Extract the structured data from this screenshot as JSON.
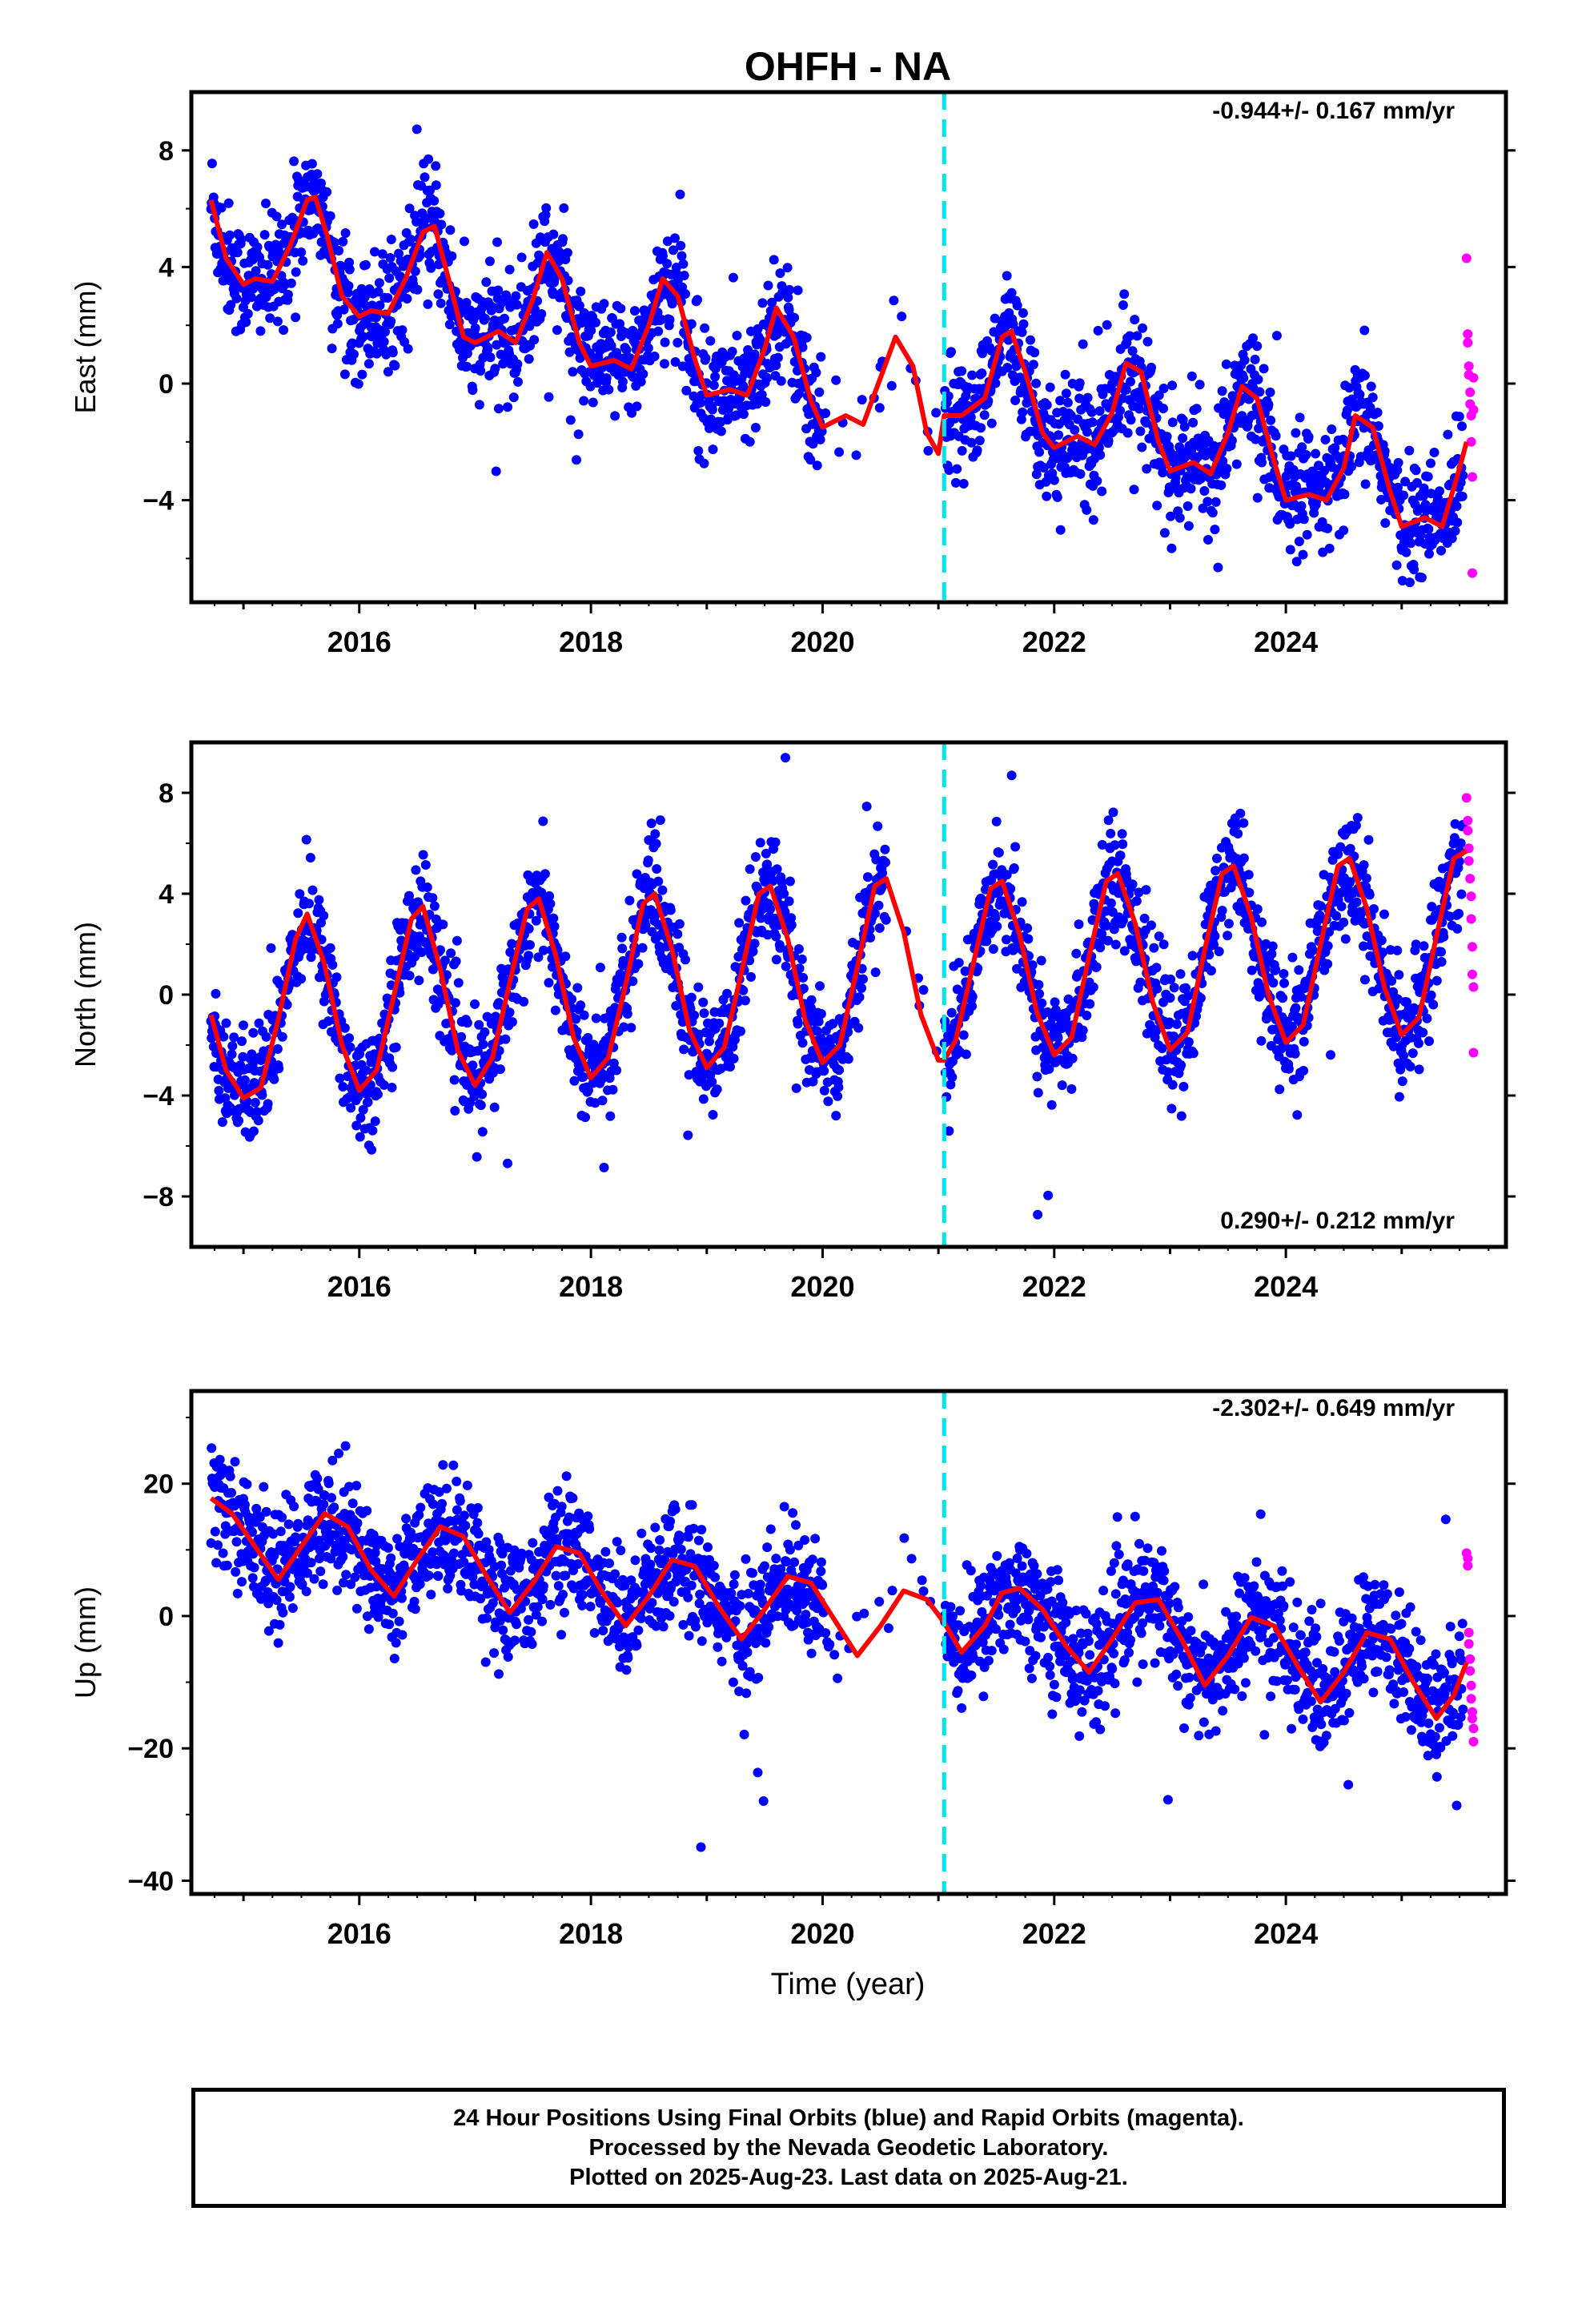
{
  "title": "OHFH - NA",
  "xlabel": "Time (year)",
  "footer": {
    "line1": "24 Hour Positions Using Final Orbits (blue) and Rapid Orbits (magenta).",
    "line2": "Processed by the Nevada Geodetic Laboratory.",
    "line3": "Plotted on 2025-Aug-23. Last data on 2025-Aug-21."
  },
  "colors": {
    "final": "#0000ff",
    "rapid": "#ff00ff",
    "model": "#ff0000",
    "event_line": "#00e5ee"
  },
  "chart_data": [
    {
      "type": "scatter",
      "component": "east",
      "ylabel": "East (mm)",
      "rate_text": "-0.944+/- 0.167 mm/yr",
      "xlim": [
        2014.55,
        2025.9
      ],
      "ylim": [
        -7.5,
        10
      ],
      "yticks": [
        -4,
        0,
        4,
        8
      ],
      "xticks": [
        2016,
        2018,
        2020,
        2022,
        2024
      ],
      "event_line_x": 2021.05,
      "gap": [
        2020.0,
        2021.05
      ],
      "series": [
        {
          "name": "Final Orbits (blue)",
          "kind": "points",
          "x_range": [
            2014.72,
            2025.53
          ],
          "trend_mm_per_yr": -0.944,
          "offset_2014_7": 4.3,
          "annual_amp": 2.2,
          "semiannual_amp": 0.9,
          "scatter": 1.0
        },
        {
          "name": "Rapid Orbits (magenta)",
          "kind": "points",
          "x": [
            2025.56,
            2025.57,
            2025.57,
            2025.58,
            2025.58,
            2025.59,
            2025.59,
            2025.6,
            2025.6,
            2025.61,
            2025.61,
            2025.62,
            2025.62
          ],
          "y": [
            4.3,
            1.7,
            1.4,
            0.6,
            0.3,
            -0.3,
            -0.7,
            -1.1,
            -2.0,
            -3.2,
            -6.5,
            -0.9,
            0.2
          ]
        },
        {
          "name": "model",
          "kind": "curve",
          "x": [
            2014.72,
            2014.85,
            2015.0,
            2015.1,
            2015.25,
            2015.4,
            2015.55,
            2015.62,
            2015.72,
            2015.85,
            2016.0,
            2016.1,
            2016.25,
            2016.4,
            2016.55,
            2016.65,
            2016.75,
            2016.9,
            2017.0,
            2017.2,
            2017.35,
            2017.5,
            2017.62,
            2017.75,
            2017.9,
            2018.0,
            2018.2,
            2018.35,
            2018.5,
            2018.62,
            2018.75,
            2018.9,
            2019.0,
            2019.2,
            2019.35,
            2019.5,
            2019.6,
            2019.75,
            2019.9,
            2020.0,
            2020.2,
            2020.35,
            2020.5,
            2020.63,
            2020.78,
            2020.9,
            2021.0,
            2021.05,
            2021.2,
            2021.4,
            2021.55,
            2021.63,
            2021.75,
            2021.9,
            2022.0,
            2022.2,
            2022.35,
            2022.5,
            2022.62,
            2022.75,
            2022.9,
            2023.0,
            2023.2,
            2023.35,
            2023.5,
            2023.62,
            2023.75,
            2023.9,
            2024.0,
            2024.2,
            2024.35,
            2024.5,
            2024.6,
            2024.75,
            2024.9,
            2025.0,
            2025.2,
            2025.35,
            2025.5,
            2025.56
          ],
          "y": [
            6.3,
            4.3,
            3.4,
            3.6,
            3.5,
            4.7,
            6.3,
            6.4,
            5.1,
            3.0,
            2.3,
            2.5,
            2.4,
            3.6,
            5.2,
            5.4,
            3.9,
            1.6,
            1.4,
            1.8,
            1.4,
            2.9,
            4.5,
            3.6,
            1.4,
            0.6,
            0.8,
            0.5,
            2.0,
            3.6,
            3.0,
            0.8,
            -0.4,
            -0.2,
            -0.4,
            1.2,
            2.6,
            1.6,
            -0.6,
            -1.5,
            -1.1,
            -1.4,
            0.2,
            1.6,
            0.6,
            -1.7,
            -2.4,
            -1.1,
            -1.1,
            -0.5,
            1.6,
            1.8,
            0.4,
            -1.7,
            -2.2,
            -1.8,
            -2.1,
            -1.0,
            0.7,
            0.4,
            -2.0,
            -3.0,
            -2.7,
            -3.1,
            -1.7,
            -0.1,
            -0.5,
            -2.7,
            -4.0,
            -3.8,
            -4.0,
            -2.9,
            -1.1,
            -1.5,
            -3.7,
            -4.9,
            -4.6,
            -4.9,
            -2.9,
            -2.0
          ]
        }
      ]
    },
    {
      "type": "scatter",
      "component": "north",
      "ylabel": "North (mm)",
      "rate_text": "0.290+/- 0.212 mm/yr",
      "xlim": [
        2014.55,
        2025.9
      ],
      "ylim": [
        -10,
        10
      ],
      "yticks": [
        -8,
        -4,
        0,
        4,
        8
      ],
      "xticks": [
        2016,
        2018,
        2020,
        2022,
        2024
      ],
      "event_line_x": 2021.05,
      "gap": [
        2020.55,
        2021.05
      ],
      "series": [
        {
          "name": "Final Orbits (blue)",
          "kind": "points",
          "x_range": [
            2014.72,
            2025.53
          ],
          "trend_mm_per_yr": 0.29,
          "offset_2014_7": 0.0,
          "annual_amp": 3.7,
          "semiannual_amp": 0.0,
          "scatter": 1.1
        },
        {
          "name": "Rapid Orbits (magenta)",
          "kind": "points",
          "x": [
            2025.56,
            2025.57,
            2025.57,
            2025.58,
            2025.58,
            2025.59,
            2025.6,
            2025.6,
            2025.61,
            2025.61,
            2025.62,
            2025.62
          ],
          "y": [
            7.8,
            6.9,
            6.5,
            5.8,
            5.3,
            4.6,
            3.9,
            3.0,
            1.9,
            0.8,
            0.3,
            -2.3
          ]
        },
        {
          "name": "model",
          "kind": "curve",
          "x": [
            2014.72,
            2014.85,
            2015.0,
            2015.15,
            2015.3,
            2015.45,
            2015.55,
            2015.7,
            2015.85,
            2016.0,
            2016.15,
            2016.3,
            2016.45,
            2016.55,
            2016.7,
            2016.85,
            2017.0,
            2017.15,
            2017.3,
            2017.45,
            2017.55,
            2017.7,
            2017.85,
            2018.0,
            2018.15,
            2018.3,
            2018.45,
            2018.55,
            2018.7,
            2018.85,
            2019.0,
            2019.15,
            2019.3,
            2019.45,
            2019.55,
            2019.7,
            2019.85,
            2020.0,
            2020.15,
            2020.3,
            2020.45,
            2020.55,
            2020.7,
            2020.85,
            2021.0,
            2021.05,
            2021.15,
            2021.3,
            2021.45,
            2021.55,
            2021.7,
            2021.85,
            2022.0,
            2022.15,
            2022.3,
            2022.45,
            2022.55,
            2022.7,
            2022.85,
            2023.0,
            2023.15,
            2023.3,
            2023.45,
            2023.55,
            2023.7,
            2023.85,
            2024.0,
            2024.15,
            2024.3,
            2024.45,
            2024.55,
            2024.7,
            2024.85,
            2025.0,
            2025.15,
            2025.3,
            2025.45,
            2025.56
          ],
          "y": [
            -0.8,
            -3.0,
            -4.1,
            -3.7,
            -1.0,
            2.2,
            3.2,
            1.2,
            -2.0,
            -3.8,
            -3.0,
            0.0,
            3.0,
            3.5,
            1.0,
            -2.2,
            -3.6,
            -2.5,
            0.5,
            3.4,
            3.8,
            1.5,
            -1.7,
            -3.3,
            -2.5,
            0.4,
            3.6,
            4.0,
            1.8,
            -1.4,
            -2.9,
            -2.1,
            0.9,
            4.0,
            4.3,
            2.2,
            -1.0,
            -2.7,
            -2.0,
            1.1,
            4.3,
            4.6,
            2.5,
            -0.8,
            -2.6,
            -2.6,
            -1.8,
            1.2,
            4.2,
            4.5,
            2.4,
            -0.7,
            -2.4,
            -1.7,
            1.5,
            4.5,
            4.8,
            2.8,
            -0.3,
            -2.2,
            -1.5,
            1.8,
            4.8,
            5.1,
            3.1,
            0.0,
            -1.9,
            -1.2,
            2.0,
            5.1,
            5.4,
            3.4,
            0.3,
            -1.6,
            -0.9,
            2.3,
            5.4,
            5.7
          ]
        }
      ]
    },
    {
      "type": "scatter",
      "component": "up",
      "ylabel": "Up (mm)",
      "rate_text": "-2.302+/- 0.649 mm/yr",
      "xlim": [
        2014.55,
        2025.9
      ],
      "ylim": [
        -42,
        34
      ],
      "yticks": [
        -40,
        -20,
        0,
        20
      ],
      "xticks": [
        2016,
        2018,
        2020,
        2022,
        2024
      ],
      "event_line_x": 2021.05,
      "gap": [
        2020.0,
        2021.05
      ],
      "series": [
        {
          "name": "Final Orbits (blue)",
          "kind": "points",
          "x_range": [
            2014.72,
            2025.53
          ],
          "trend_mm_per_yr": -2.302,
          "offset_2014_7": 12.5,
          "annual_amp": 6.0,
          "semiannual_amp": 0.0,
          "scatter": 4.5
        },
        {
          "name": "Rapid Orbits (magenta)",
          "kind": "points",
          "x": [
            2025.56,
            2025.57,
            2025.57,
            2025.58,
            2025.58,
            2025.59,
            2025.59,
            2025.6,
            2025.6,
            2025.61,
            2025.61,
            2025.62,
            2025.62
          ],
          "y": [
            9.5,
            8.7,
            7.6,
            -2.5,
            -4.2,
            -6.5,
            -8.3,
            -10.5,
            -12.5,
            -14.5,
            -15.5,
            -17.0,
            -19.0
          ]
        },
        {
          "name": "model",
          "kind": "curve",
          "x": [
            2014.72,
            2014.9,
            2015.1,
            2015.3,
            2015.5,
            2015.7,
            2015.9,
            2016.1,
            2016.3,
            2016.5,
            2016.7,
            2016.9,
            2017.1,
            2017.3,
            2017.5,
            2017.7,
            2017.9,
            2018.1,
            2018.3,
            2018.5,
            2018.7,
            2018.9,
            2019.1,
            2019.3,
            2019.5,
            2019.7,
            2019.9,
            2020.1,
            2020.3,
            2020.5,
            2020.7,
            2020.9,
            2021.05,
            2021.2,
            2021.4,
            2021.55,
            2021.7,
            2021.9,
            2022.1,
            2022.3,
            2022.5,
            2022.7,
            2022.9,
            2023.1,
            2023.3,
            2023.5,
            2023.7,
            2023.9,
            2024.1,
            2024.3,
            2024.5,
            2024.7,
            2024.9,
            2025.1,
            2025.3,
            2025.45,
            2025.56
          ],
          "y": [
            17.8,
            15.5,
            10.5,
            5.5,
            10.5,
            15.5,
            13.5,
            7.0,
            3.0,
            8.5,
            13.5,
            12.0,
            6.0,
            0.5,
            5.0,
            10.5,
            9.5,
            3.5,
            -1.5,
            3.0,
            8.5,
            7.5,
            1.5,
            -3.5,
            1.0,
            6.0,
            5.0,
            -0.5,
            -6.0,
            -1.5,
            3.8,
            2.5,
            -1.0,
            -5.5,
            -1.5,
            3.5,
            4.2,
            1.0,
            -4.5,
            -8.5,
            -3.5,
            2.0,
            2.5,
            -3.5,
            -10.5,
            -6.0,
            -0.2,
            -1.5,
            -7.5,
            -13.0,
            -8.5,
            -2.5,
            -3.5,
            -10.0,
            -15.5,
            -12.0,
            -7.0
          ]
        }
      ]
    }
  ]
}
